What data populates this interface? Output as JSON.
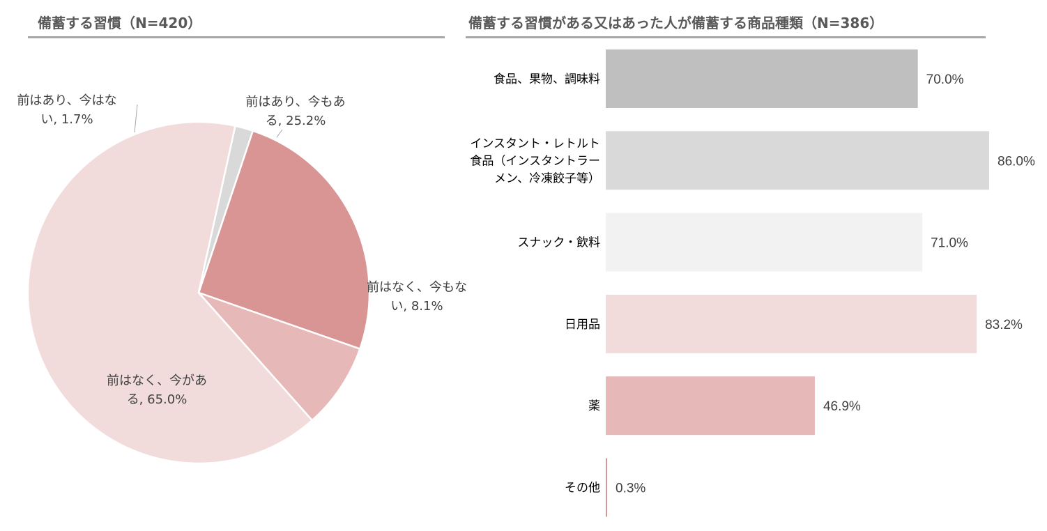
{
  "chart_data": [
    {
      "type": "pie",
      "title": "備蓄する習慣（N=420）",
      "slices": [
        {
          "label_lines": [
            "前はあり、今もあ",
            "る, 25.2%"
          ],
          "value": 25.2,
          "color": "#d99594"
        },
        {
          "label_lines": [
            "前はなく、今もな",
            "い, 8.1%"
          ],
          "value": 8.1,
          "color": "#e6b8b7"
        },
        {
          "label_lines": [
            "前はなく、今があ",
            "る, 65.0%"
          ],
          "value": 65.0,
          "color": "#f2dcdb"
        },
        {
          "label_lines": [
            "前はあり、今はな",
            "い, 1.7%"
          ],
          "value": 1.7,
          "color": "#d9d9d9"
        }
      ]
    },
    {
      "type": "bar",
      "orientation": "horizontal",
      "title": "備蓄する習慣がある又はあった人が備蓄する商品種類（N=386）",
      "categories": [
        [
          "食品、果物、調味料"
        ],
        [
          "インスタント・レトルト",
          "食品（インスタントラー",
          "メン、冷凍餃子等）"
        ],
        [
          "スナック・飲料"
        ],
        [
          "日用品"
        ],
        [
          "薬"
        ],
        [
          "その他"
        ]
      ],
      "values": [
        70.0,
        86.0,
        71.0,
        83.2,
        46.9,
        0.3
      ],
      "value_labels": [
        "70.0%",
        "86.0%",
        "71.0%",
        "83.2%",
        "46.9%",
        "0.3%"
      ],
      "colors": [
        "#bfbfbf",
        "#d9d9d9",
        "#f2f2f2",
        "#f2dcdb",
        "#e6b8b7",
        "#d99594"
      ],
      "xlim": [
        0,
        86
      ]
    }
  ]
}
